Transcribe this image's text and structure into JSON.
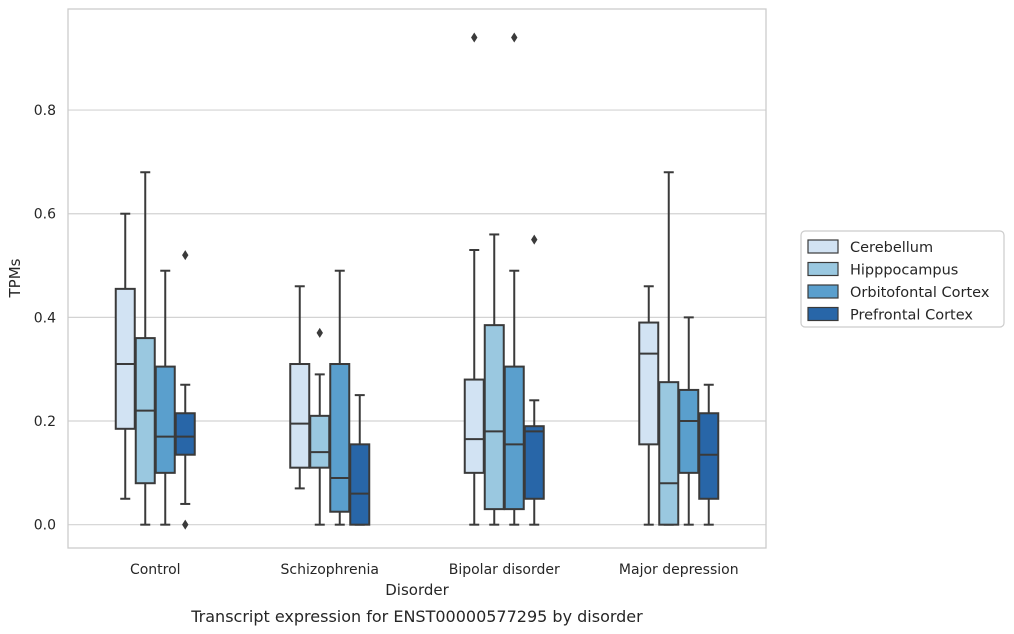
{
  "chart_data": {
    "type": "boxplot",
    "caption": "Transcript expression for ENST00000577295 by disorder",
    "xlabel": "Disorder",
    "ylabel": "TPMs",
    "ylim": [
      -0.045,
      0.995
    ],
    "yticks": [
      0.0,
      0.2,
      0.4,
      0.6,
      0.8
    ],
    "ytick_labels": [
      "0.0",
      "0.2",
      "0.4",
      "0.6",
      "0.8"
    ],
    "grid": "horizontal",
    "legend_position": "right",
    "categories": [
      "Control",
      "Schizophrenia",
      "Bipolar disorder",
      "Major depression"
    ],
    "series": [
      {
        "name": "Cerebellum",
        "color": "#d2e3f3",
        "boxes": [
          {
            "whisker_low": 0.05,
            "q1": 0.185,
            "median": 0.31,
            "q3": 0.455,
            "whisker_high": 0.6,
            "outliers": []
          },
          {
            "whisker_low": 0.07,
            "q1": 0.11,
            "median": 0.195,
            "q3": 0.31,
            "whisker_high": 0.46,
            "outliers": []
          },
          {
            "whisker_low": 0.0,
            "q1": 0.1,
            "median": 0.165,
            "q3": 0.28,
            "whisker_high": 0.53,
            "outliers": [
              0.94
            ]
          },
          {
            "whisker_low": 0.0,
            "q1": 0.155,
            "median": 0.33,
            "q3": 0.39,
            "whisker_high": 0.46,
            "outliers": []
          }
        ]
      },
      {
        "name": "Hipppocampus",
        "color": "#9ac8e0",
        "boxes": [
          {
            "whisker_low": 0.0,
            "q1": 0.08,
            "median": 0.22,
            "q3": 0.36,
            "whisker_high": 0.68,
            "outliers": []
          },
          {
            "whisker_low": 0.0,
            "q1": 0.11,
            "median": 0.14,
            "q3": 0.21,
            "whisker_high": 0.29,
            "outliers": [
              0.37
            ]
          },
          {
            "whisker_low": 0.0,
            "q1": 0.03,
            "median": 0.18,
            "q3": 0.385,
            "whisker_high": 0.56,
            "outliers": []
          },
          {
            "whisker_low": 0.0,
            "q1": 0.0,
            "median": 0.08,
            "q3": 0.275,
            "whisker_high": 0.68,
            "outliers": []
          }
        ]
      },
      {
        "name": "Orbitofontal Cortex",
        "color": "#5a9fcd",
        "boxes": [
          {
            "whisker_low": 0.0,
            "q1": 0.1,
            "median": 0.17,
            "q3": 0.305,
            "whisker_high": 0.49,
            "outliers": []
          },
          {
            "whisker_low": 0.0,
            "q1": 0.025,
            "median": 0.09,
            "q3": 0.31,
            "whisker_high": 0.49,
            "outliers": []
          },
          {
            "whisker_low": 0.0,
            "q1": 0.03,
            "median": 0.155,
            "q3": 0.305,
            "whisker_high": 0.49,
            "outliers": [
              0.94
            ]
          },
          {
            "whisker_low": 0.0,
            "q1": 0.1,
            "median": 0.2,
            "q3": 0.26,
            "whisker_high": 0.4,
            "outliers": []
          }
        ]
      },
      {
        "name": "Prefrontal Cortex",
        "color": "#2866a8",
        "boxes": [
          {
            "whisker_low": 0.04,
            "q1": 0.135,
            "median": 0.17,
            "q3": 0.215,
            "whisker_high": 0.27,
            "outliers": [
              0.0,
              0.52
            ]
          },
          {
            "whisker_low": 0.0,
            "q1": 0.0,
            "median": 0.06,
            "q3": 0.155,
            "whisker_high": 0.25,
            "outliers": []
          },
          {
            "whisker_low": 0.0,
            "q1": 0.05,
            "median": 0.18,
            "q3": 0.19,
            "whisker_high": 0.24,
            "outliers": [
              0.55
            ]
          },
          {
            "whisker_low": 0.0,
            "q1": 0.05,
            "median": 0.135,
            "q3": 0.215,
            "whisker_high": 0.27,
            "outliers": []
          }
        ]
      }
    ]
  }
}
